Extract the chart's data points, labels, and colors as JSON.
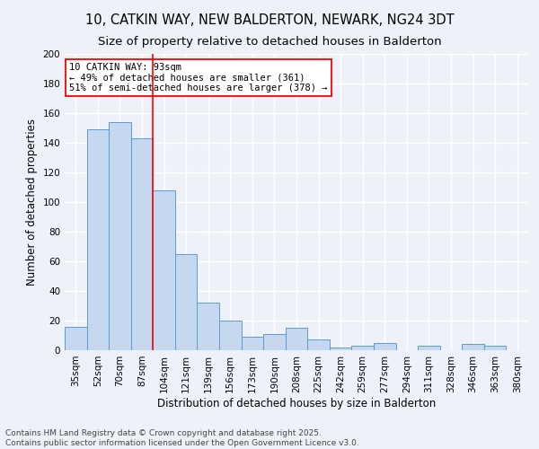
{
  "title": "10, CATKIN WAY, NEW BALDERTON, NEWARK, NG24 3DT",
  "subtitle": "Size of property relative to detached houses in Balderton",
  "xlabel": "Distribution of detached houses by size in Balderton",
  "ylabel": "Number of detached properties",
  "categories": [
    "35sqm",
    "52sqm",
    "70sqm",
    "87sqm",
    "104sqm",
    "121sqm",
    "139sqm",
    "156sqm",
    "173sqm",
    "190sqm",
    "208sqm",
    "225sqm",
    "242sqm",
    "259sqm",
    "277sqm",
    "294sqm",
    "311sqm",
    "328sqm",
    "346sqm",
    "363sqm",
    "380sqm"
  ],
  "values": [
    16,
    149,
    154,
    143,
    108,
    65,
    32,
    20,
    9,
    11,
    15,
    7,
    2,
    3,
    5,
    0,
    3,
    0,
    4,
    3,
    0
  ],
  "bar_color": "#c5d8f0",
  "bar_edge_color": "#5b9bd5",
  "vline_x_index": 3.5,
  "vline_color": "red",
  "annotation_line1": "10 CATKIN WAY: 93sqm",
  "annotation_line2": "← 49% of detached houses are smaller (361)",
  "annotation_line3": "51% of semi-detached houses are larger (378) →",
  "annotation_box_color": "white",
  "annotation_box_edge": "red",
  "ylim": [
    0,
    200
  ],
  "yticks": [
    0,
    20,
    40,
    60,
    80,
    100,
    120,
    140,
    160,
    180,
    200
  ],
  "footer": "Contains HM Land Registry data © Crown copyright and database right 2025.\nContains public sector information licensed under the Open Government Licence v3.0.",
  "background_color": "#eef2f8",
  "grid_color": "white",
  "title_fontsize": 10.5,
  "subtitle_fontsize": 9.5,
  "axis_label_fontsize": 8.5,
  "tick_fontsize": 7.5,
  "annotation_fontsize": 7.5,
  "footer_fontsize": 6.5
}
